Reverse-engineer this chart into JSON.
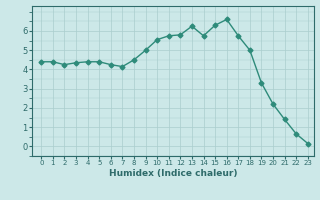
{
  "x": [
    0,
    1,
    2,
    3,
    4,
    5,
    6,
    7,
    8,
    9,
    10,
    11,
    12,
    13,
    14,
    15,
    16,
    17,
    18,
    19,
    20,
    21,
    22,
    23
  ],
  "y": [
    4.4,
    4.4,
    4.25,
    4.35,
    4.4,
    4.4,
    4.25,
    4.15,
    4.5,
    5.0,
    5.55,
    5.75,
    5.8,
    6.25,
    5.75,
    6.3,
    6.6,
    5.75,
    5.0,
    3.3,
    2.2,
    1.4,
    0.65,
    0.15
  ],
  "line_color": "#2e8b7a",
  "marker": "D",
  "marker_size": 2.5,
  "line_width": 1.0,
  "bg_color": "#cce8e8",
  "grid_color": "#aacece",
  "tick_color": "#2e6b6a",
  "xlabel": "Humidex (Indice chaleur)",
  "xlabel_fontsize": 6.5,
  "xlabel_color": "#2e6b6a",
  "xtick_fontsize": 5.0,
  "ytick_fontsize": 6.0,
  "ylim": [
    -0.5,
    7.3
  ],
  "yticks": [
    0,
    1,
    2,
    3,
    4,
    5,
    6
  ],
  "xlim": [
    -0.8,
    23.5
  ]
}
